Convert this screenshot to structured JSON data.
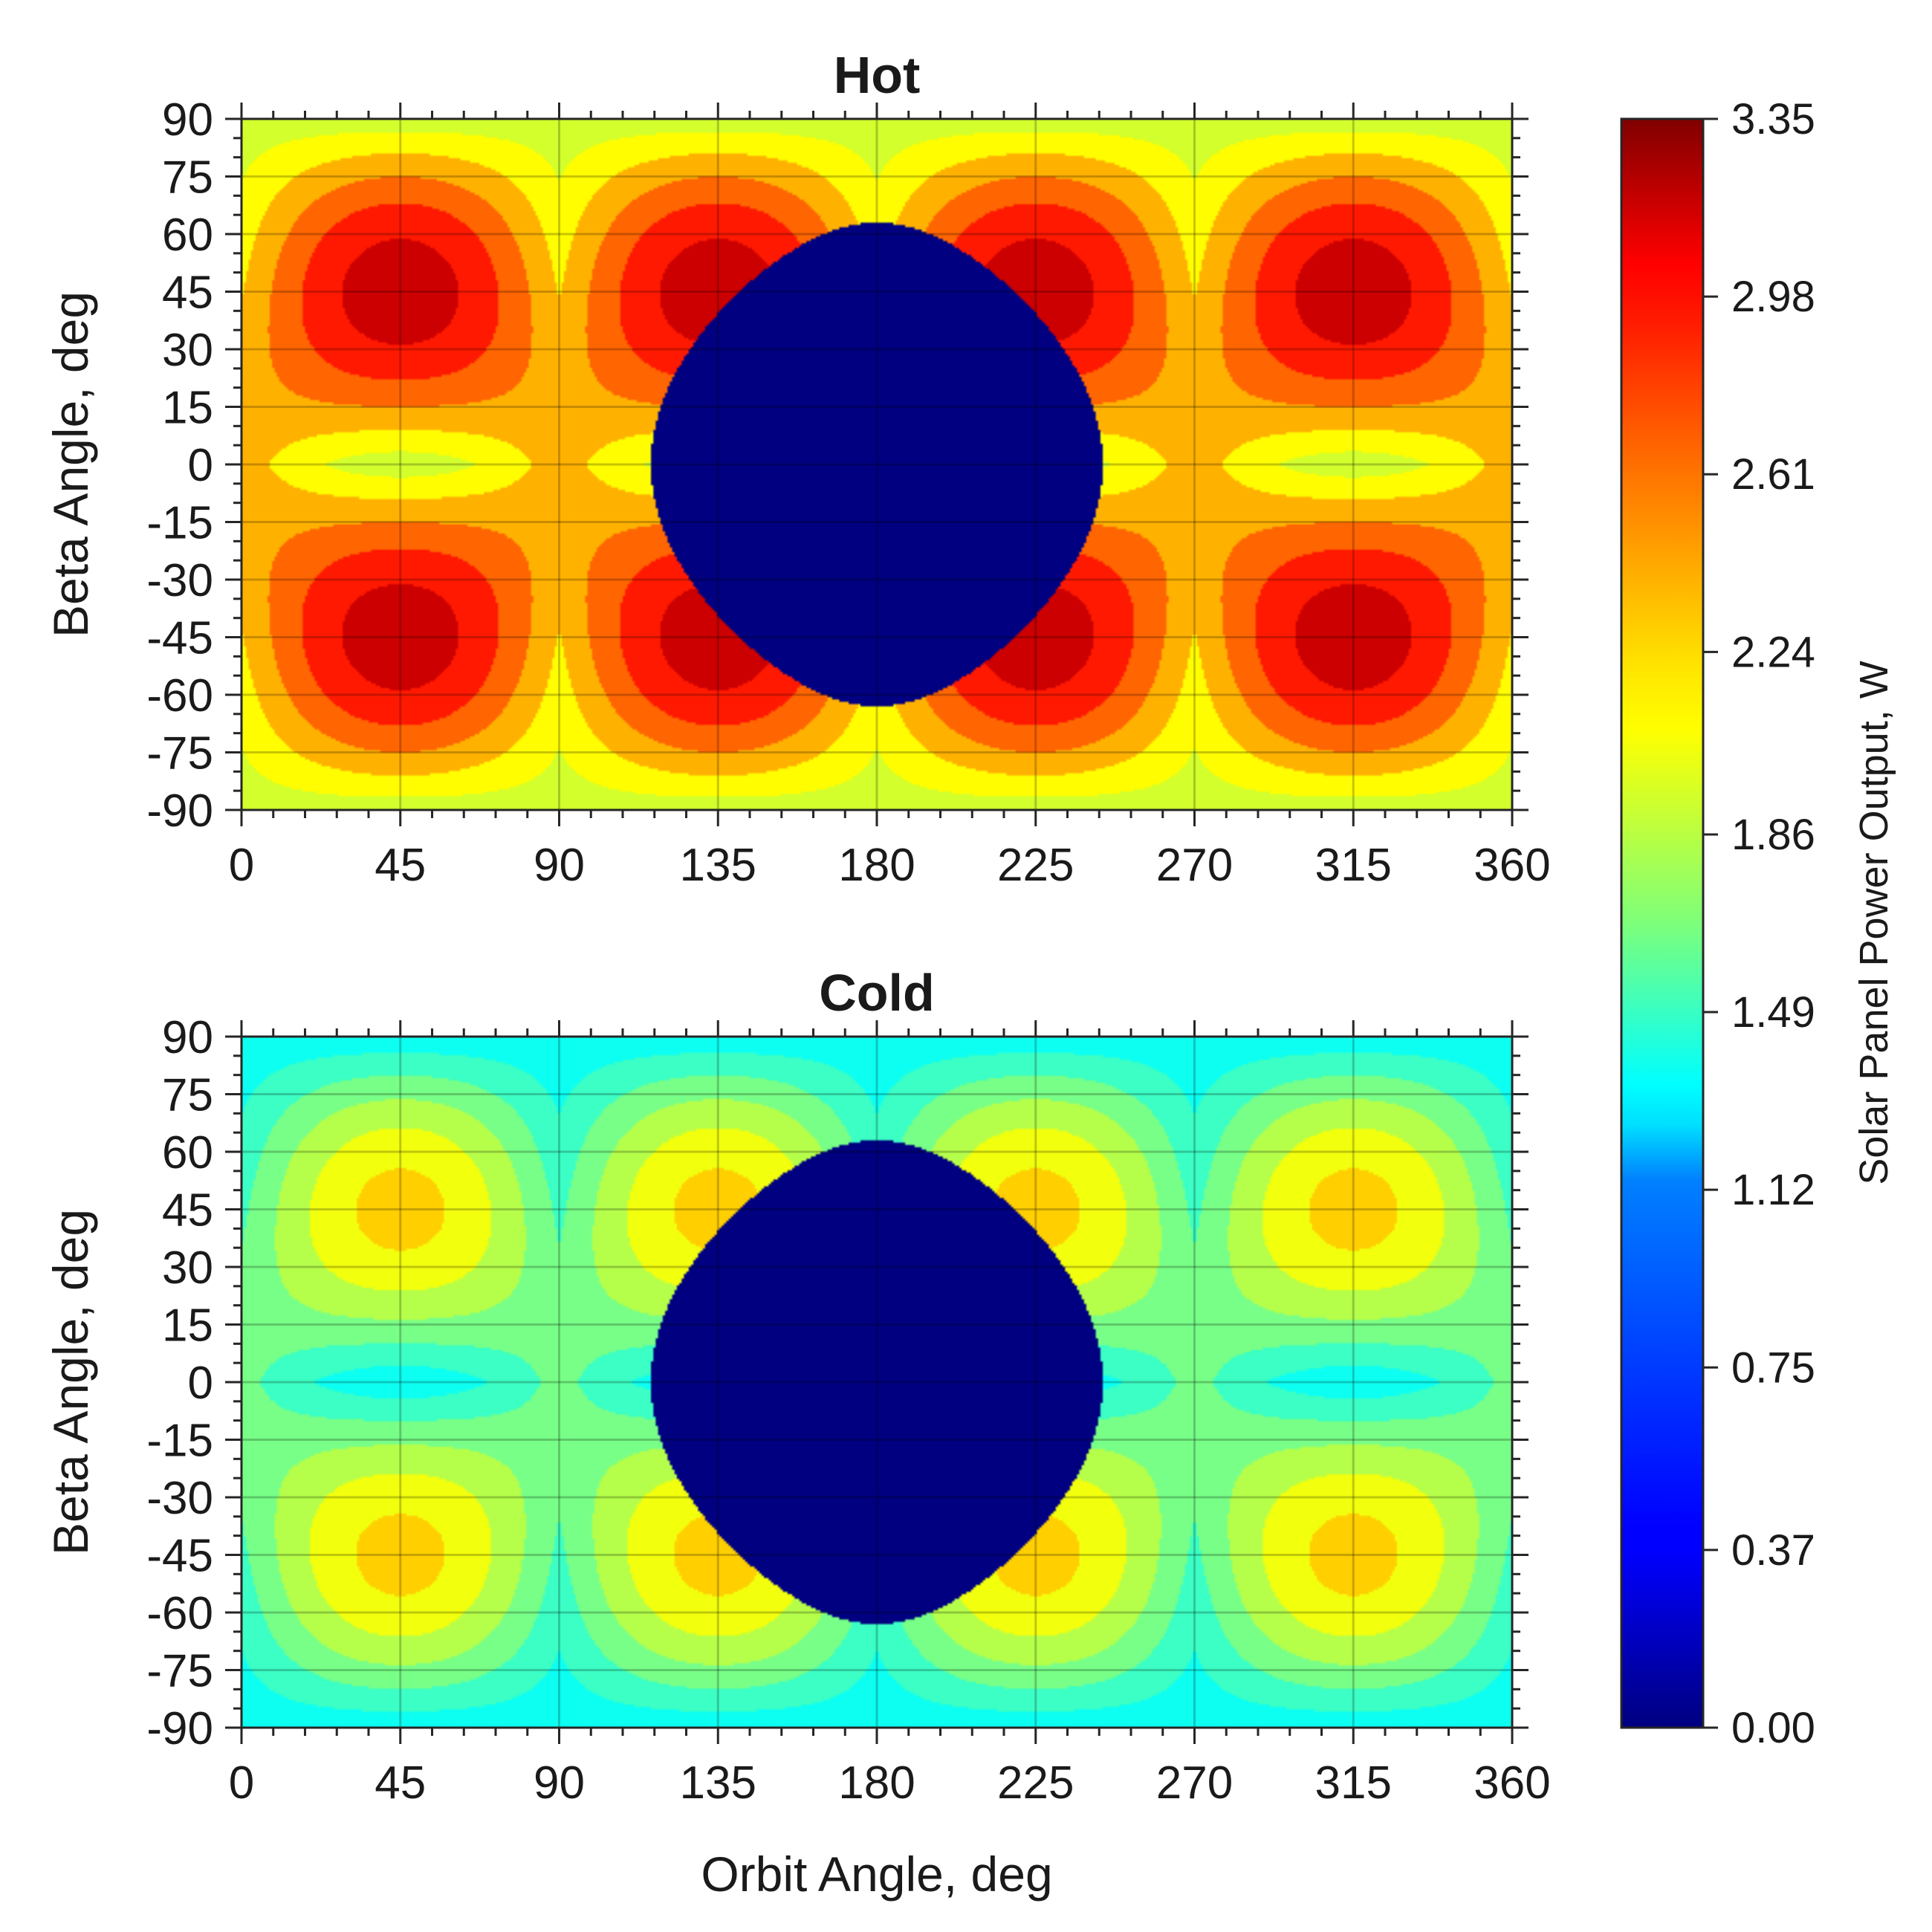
{
  "chart_data": [
    {
      "type": "heatmap",
      "title": "Hot",
      "xlabel": "",
      "ylabel": "Beta Angle, deg",
      "xlim": [
        0,
        360
      ],
      "ylim": [
        -90,
        90
      ],
      "xticks": [
        "0",
        "45",
        "90",
        "135",
        "180",
        "225",
        "270",
        "315",
        "360"
      ],
      "yticks": [
        "90",
        "75",
        "60",
        "45",
        "30",
        "15",
        "0",
        "-15",
        "-30",
        "-45",
        "-60",
        "-75",
        "-90"
      ],
      "grid": true,
      "peak_value": 3.35,
      "min_sunlit_value": 1.95,
      "eclipse_region": {
        "orbit_angle_center": 180,
        "orbit_half_width_at_beta0": 64,
        "beta_limit": 63,
        "value": 0.0
      },
      "levels": [
        1.95,
        2.1,
        2.35,
        2.6,
        2.85,
        3.1,
        3.35
      ]
    },
    {
      "type": "heatmap",
      "title": "Cold",
      "xlabel": "Orbit Angle, deg",
      "ylabel": "Beta Angle, deg",
      "xlim": [
        0,
        360
      ],
      "ylim": [
        -90,
        90
      ],
      "xticks": [
        "0",
        "45",
        "90",
        "135",
        "180",
        "225",
        "270",
        "315",
        "360"
      ],
      "yticks": [
        "90",
        "75",
        "60",
        "45",
        "30",
        "15",
        "0",
        "-15",
        "-30",
        "-45",
        "-60",
        "-75",
        "-90"
      ],
      "grid": true,
      "peak_value": 2.4,
      "min_sunlit_value": 1.3,
      "eclipse_region": {
        "orbit_angle_center": 180,
        "orbit_half_width_at_beta0": 64,
        "beta_limit": 63,
        "value": 0.0
      },
      "levels": [
        1.3,
        1.45,
        1.65,
        1.85,
        2.05,
        2.25,
        2.4
      ]
    }
  ],
  "colorbar": {
    "label": "Solar Panel Power Output, W",
    "colormap": "jet",
    "range": [
      0.0,
      3.35
    ],
    "ticks": [
      "3.35",
      "2.98",
      "2.61",
      "2.24",
      "1.86",
      "1.49",
      "1.12",
      "0.75",
      "0.37",
      "0.00"
    ]
  }
}
